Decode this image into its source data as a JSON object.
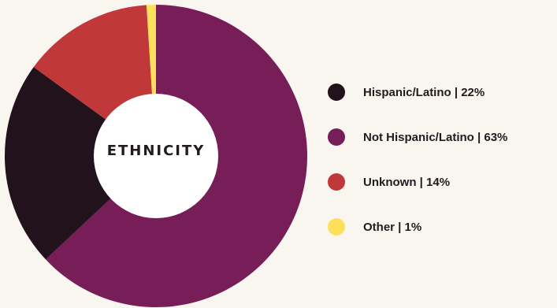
{
  "chart_data": {
    "type": "pie",
    "title": "ETHNICITY",
    "legend_position": "right",
    "categories": [
      "Hispanic/Latino",
      "Not Hispanic/Latino",
      "Unknown",
      "Other"
    ],
    "values": [
      22,
      63,
      14,
      1
    ],
    "legend_labels": [
      "Hispanic/Latino | 22%",
      "Not Hispanic/Latino | 63%",
      "Unknown | 14%",
      "Other | 1%"
    ],
    "colors": [
      "#22121b",
      "#771d57",
      "#c1383a",
      "#ffe05a"
    ]
  }
}
